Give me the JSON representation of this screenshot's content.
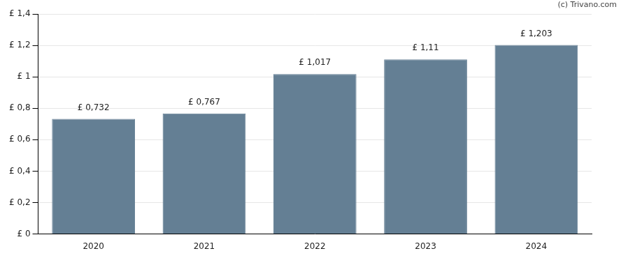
{
  "chart_data": {
    "type": "bar",
    "annotations": [
      "(c) Trivano.com"
    ],
    "categories": [
      "2020",
      "2021",
      "2022",
      "2023",
      "2024"
    ],
    "values": [
      0.732,
      0.767,
      1.017,
      1.11,
      1.203
    ],
    "value_labels": [
      "£ 0,732",
      "£ 0,767",
      "£ 1,017",
      "£ 1,11",
      "£ 1,203"
    ],
    "data_labels": true,
    "color": "#647f94",
    "ylim": [
      0,
      1.4
    ],
    "yticks": [
      {
        "value": 0,
        "label": "£ 0"
      },
      {
        "value": 0.2,
        "label": "£ 0,2"
      },
      {
        "value": 0.4,
        "label": "£ 0,4"
      },
      {
        "value": 0.6,
        "label": "£ 0,6"
      },
      {
        "value": 0.8,
        "label": "£ 0,8"
      },
      {
        "value": 1,
        "label": "£ 1"
      },
      {
        "value": 1.2,
        "label": "£ 1,2"
      },
      {
        "value": 1.4,
        "label": "£ 1,4"
      }
    ],
    "grid": true
  }
}
